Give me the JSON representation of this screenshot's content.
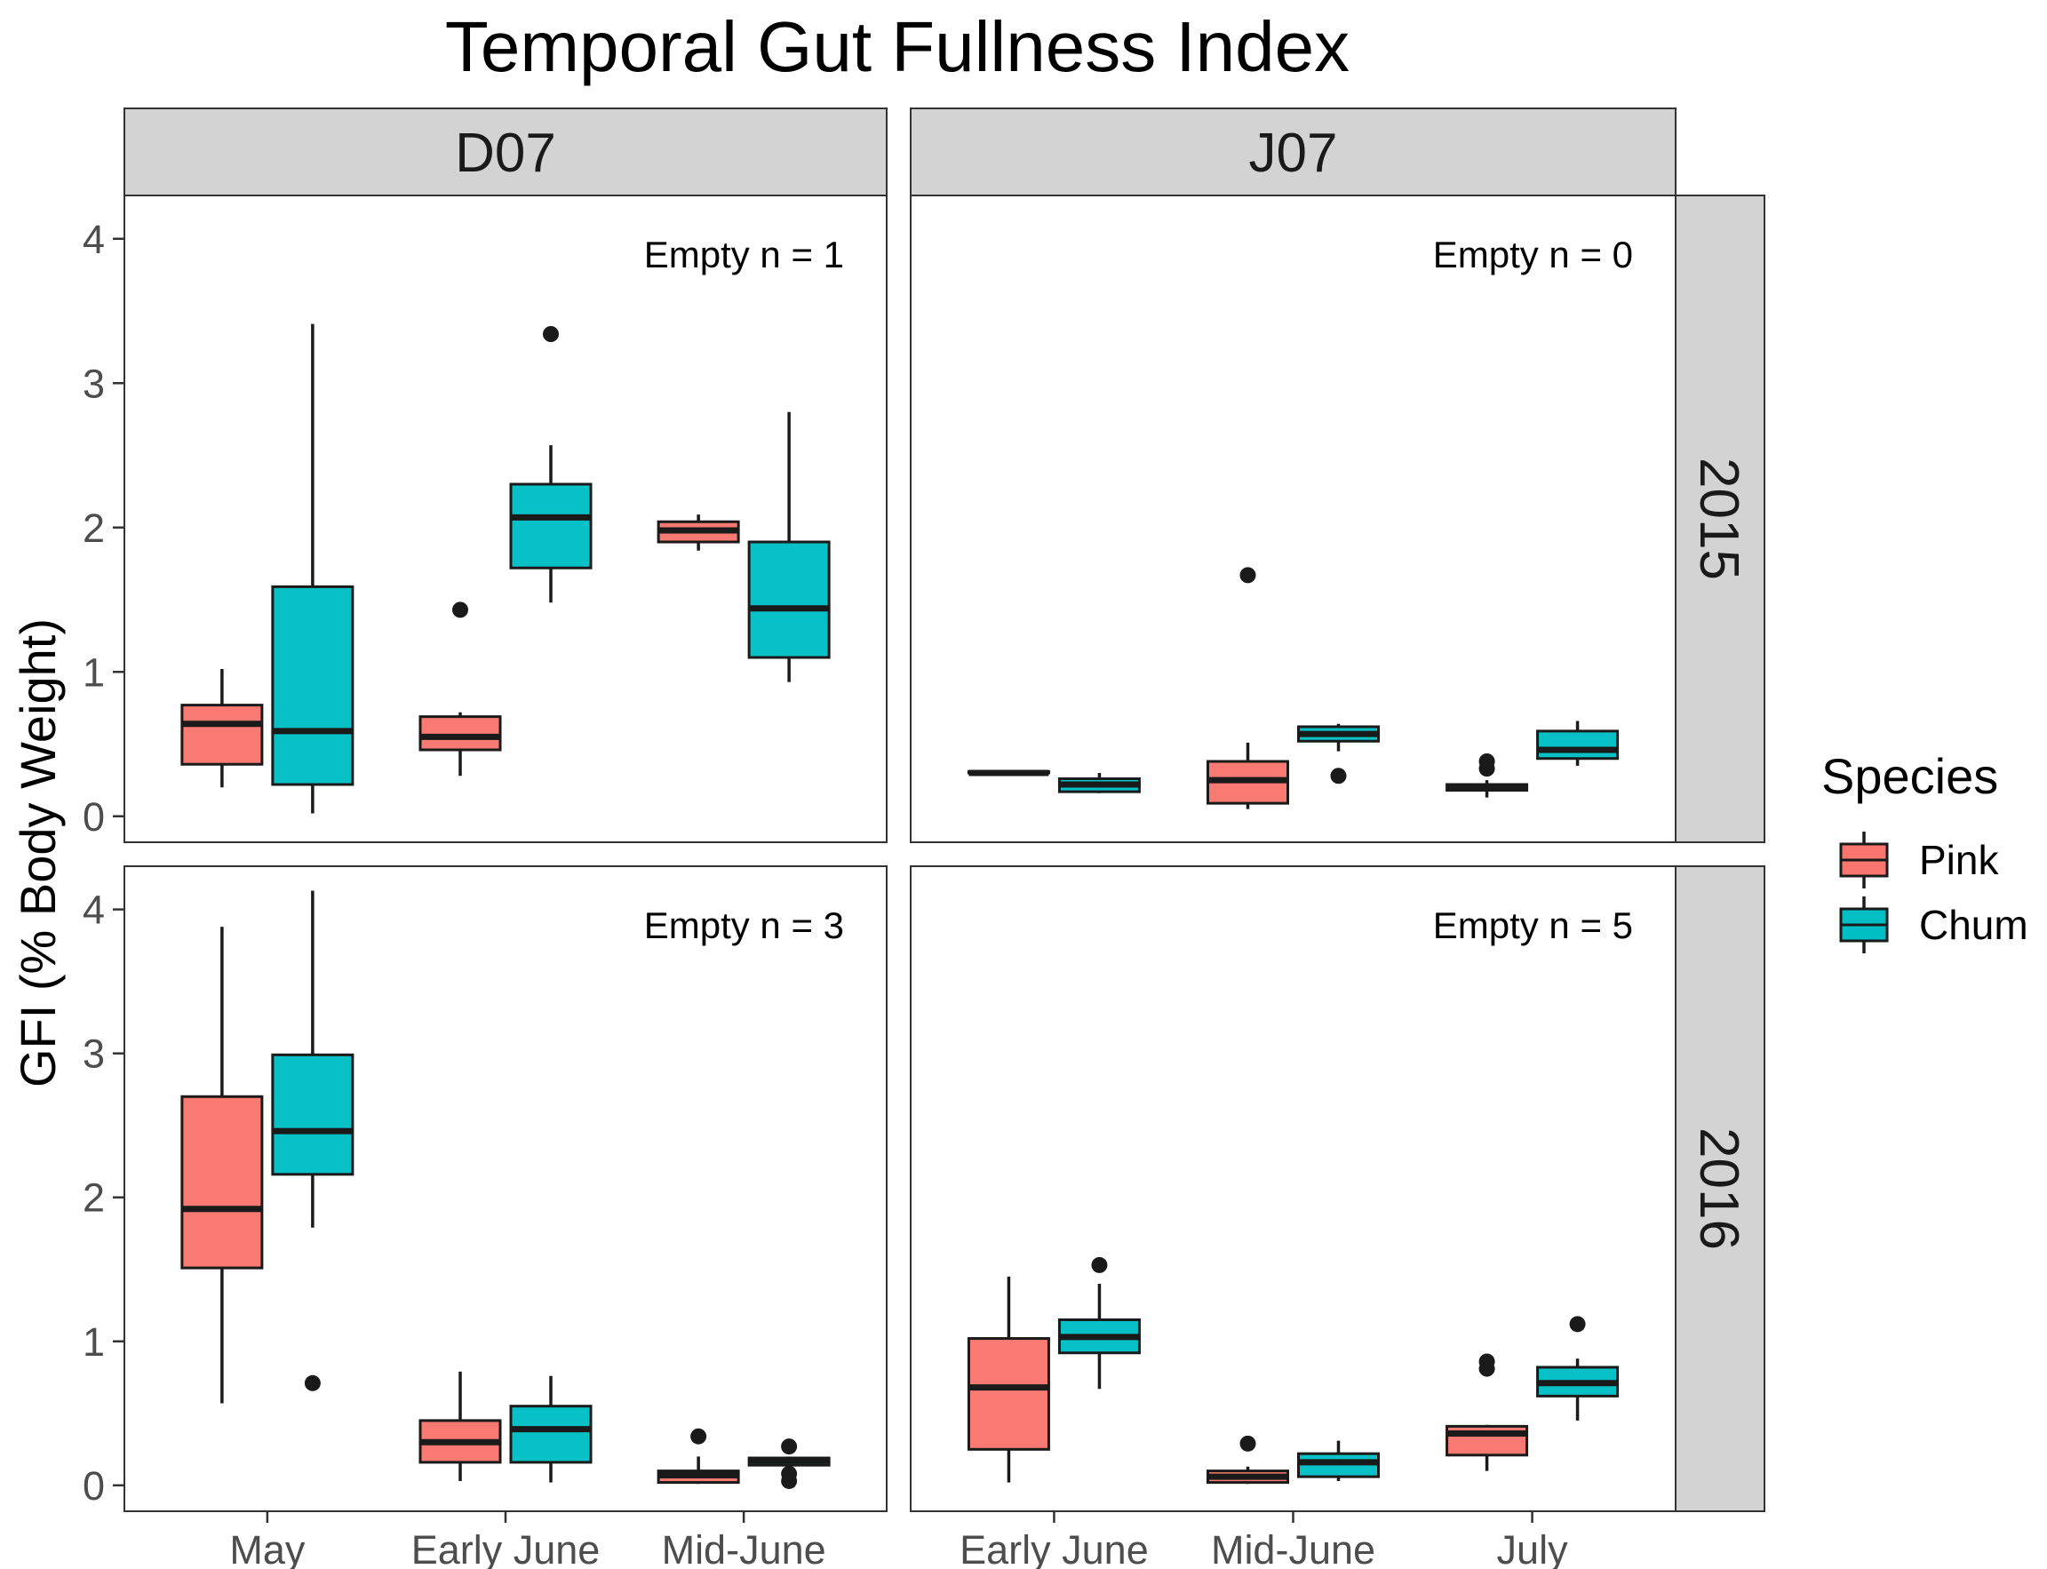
{
  "chart_data": {
    "type": "boxplot",
    "title": "Temporal Gut Fullness Index",
    "ylabel": "GFI (% Body Weight)",
    "xlabel": "",
    "ylim": [
      -0.18,
      4.3
    ],
    "y_ticks": [
      0,
      1,
      2,
      3,
      4
    ],
    "legend": {
      "title": "Species",
      "position": "right",
      "items": [
        {
          "name": "Pink",
          "color": "#F8766D"
        },
        {
          "name": "Chum",
          "color": "#00BFC4"
        }
      ]
    },
    "column_strips": [
      "D07",
      "J07"
    ],
    "row_strips": [
      "2015",
      "2016"
    ],
    "column_categories": {
      "D07": [
        "May",
        "Early June",
        "Mid-June"
      ],
      "J07": [
        "Early June",
        "Mid-June",
        "July"
      ]
    },
    "grid": false,
    "panels": [
      {
        "col": "D07",
        "row": "2015",
        "annotation": "Empty n = 1",
        "boxes": [
          {
            "category": "May",
            "species": "Pink",
            "lower_whisker": 0.2,
            "q1": 0.36,
            "median": 0.64,
            "q3": 0.77,
            "upper_whisker": 1.02,
            "outliers": []
          },
          {
            "category": "May",
            "species": "Chum",
            "lower_whisker": 0.02,
            "q1": 0.22,
            "median": 0.59,
            "q3": 1.59,
            "upper_whisker": 3.41,
            "outliers": []
          },
          {
            "category": "Early June",
            "species": "Pink",
            "lower_whisker": 0.28,
            "q1": 0.46,
            "median": 0.55,
            "q3": 0.69,
            "upper_whisker": 0.72,
            "outliers": [
              1.43
            ]
          },
          {
            "category": "Early June",
            "species": "Chum",
            "lower_whisker": 1.48,
            "q1": 1.72,
            "median": 2.07,
            "q3": 2.3,
            "upper_whisker": 2.57,
            "outliers": [
              3.34
            ]
          },
          {
            "category": "Mid-June",
            "species": "Pink",
            "lower_whisker": 1.84,
            "q1": 1.9,
            "median": 1.98,
            "q3": 2.04,
            "upper_whisker": 2.09,
            "outliers": []
          },
          {
            "category": "Mid-June",
            "species": "Chum",
            "lower_whisker": 0.93,
            "q1": 1.1,
            "median": 1.44,
            "q3": 1.9,
            "upper_whisker": 2.8,
            "outliers": []
          }
        ]
      },
      {
        "col": "J07",
        "row": "2015",
        "annotation": "Empty n = 0",
        "boxes": [
          {
            "category": "Early June",
            "species": "Pink",
            "lower_whisker": 0.3,
            "q1": 0.3,
            "median": 0.3,
            "q3": 0.31,
            "upper_whisker": 0.31,
            "outliers": []
          },
          {
            "category": "Early June",
            "species": "Chum",
            "lower_whisker": 0.16,
            "q1": 0.17,
            "median": 0.22,
            "q3": 0.26,
            "upper_whisker": 0.3,
            "outliers": []
          },
          {
            "category": "Mid-June",
            "species": "Pink",
            "lower_whisker": 0.05,
            "q1": 0.09,
            "median": 0.25,
            "q3": 0.38,
            "upper_whisker": 0.51,
            "outliers": [
              1.67
            ]
          },
          {
            "category": "Mid-June",
            "species": "Chum",
            "lower_whisker": 0.45,
            "q1": 0.52,
            "median": 0.57,
            "q3": 0.62,
            "upper_whisker": 0.64,
            "outliers": [
              0.28
            ]
          },
          {
            "category": "July",
            "species": "Pink",
            "lower_whisker": 0.13,
            "q1": 0.18,
            "median": 0.2,
            "q3": 0.22,
            "upper_whisker": 0.25,
            "outliers": [
              0.33,
              0.38
            ]
          },
          {
            "category": "July",
            "species": "Chum",
            "lower_whisker": 0.35,
            "q1": 0.4,
            "median": 0.46,
            "q3": 0.59,
            "upper_whisker": 0.66,
            "outliers": []
          }
        ]
      },
      {
        "col": "D07",
        "row": "2016",
        "annotation": "Empty n = 3",
        "boxes": [
          {
            "category": "May",
            "species": "Pink",
            "lower_whisker": 0.57,
            "q1": 1.51,
            "median": 1.92,
            "q3": 2.7,
            "upper_whisker": 3.88,
            "outliers": []
          },
          {
            "category": "May",
            "species": "Chum",
            "lower_whisker": 1.79,
            "q1": 2.16,
            "median": 2.46,
            "q3": 2.99,
            "upper_whisker": 4.13,
            "outliers": [
              0.71
            ]
          },
          {
            "category": "Early June",
            "species": "Pink",
            "lower_whisker": 0.03,
            "q1": 0.16,
            "median": 0.3,
            "q3": 0.45,
            "upper_whisker": 0.79,
            "outliers": []
          },
          {
            "category": "Early June",
            "species": "Chum",
            "lower_whisker": 0.02,
            "q1": 0.16,
            "median": 0.39,
            "q3": 0.55,
            "upper_whisker": 0.76,
            "outliers": []
          },
          {
            "category": "Mid-June",
            "species": "Pink",
            "lower_whisker": 0.01,
            "q1": 0.02,
            "median": 0.07,
            "q3": 0.1,
            "upper_whisker": 0.2,
            "outliers": [
              0.34
            ]
          },
          {
            "category": "Mid-June",
            "species": "Chum",
            "lower_whisker": 0.14,
            "q1": 0.14,
            "median": 0.17,
            "q3": 0.19,
            "upper_whisker": 0.2,
            "outliers": [
              0.03,
              0.08,
              0.27
            ]
          }
        ]
      },
      {
        "col": "J07",
        "row": "2016",
        "annotation": "Empty n = 5",
        "boxes": [
          {
            "category": "Early June",
            "species": "Pink",
            "lower_whisker": 0.02,
            "q1": 0.25,
            "median": 0.68,
            "q3": 1.02,
            "upper_whisker": 1.45,
            "outliers": []
          },
          {
            "category": "Early June",
            "species": "Chum",
            "lower_whisker": 0.67,
            "q1": 0.92,
            "median": 1.03,
            "q3": 1.15,
            "upper_whisker": 1.4,
            "outliers": [
              1.53
            ]
          },
          {
            "category": "Mid-June",
            "species": "Pink",
            "lower_whisker": 0.01,
            "q1": 0.02,
            "median": 0.06,
            "q3": 0.1,
            "upper_whisker": 0.13,
            "outliers": [
              0.29
            ]
          },
          {
            "category": "Mid-June",
            "species": "Chum",
            "lower_whisker": 0.03,
            "q1": 0.06,
            "median": 0.16,
            "q3": 0.22,
            "upper_whisker": 0.31,
            "outliers": []
          },
          {
            "category": "July",
            "species": "Pink",
            "lower_whisker": 0.1,
            "q1": 0.21,
            "median": 0.36,
            "q3": 0.41,
            "upper_whisker": 0.42,
            "outliers": [
              0.81,
              0.86
            ]
          },
          {
            "category": "July",
            "species": "Chum",
            "lower_whisker": 0.45,
            "q1": 0.62,
            "median": 0.71,
            "q3": 0.82,
            "upper_whisker": 0.88,
            "outliers": [
              1.12
            ]
          }
        ]
      }
    ]
  }
}
